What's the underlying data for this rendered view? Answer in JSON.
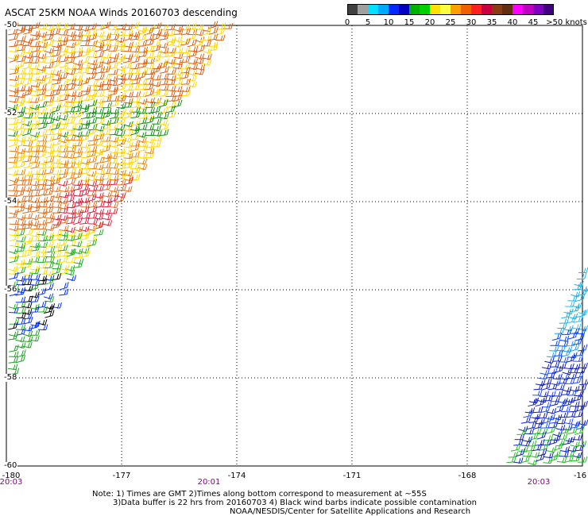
{
  "title": "ASCAT 25KM NOAA Winds 20160703 descending",
  "colorbar": {
    "colors": [
      "#404040",
      "#a0a0a0",
      "#00e0ff",
      "#00a8ff",
      "#0028ff",
      "#0000c0",
      "#00b000",
      "#00d000",
      "#ffe000",
      "#ffff40",
      "#ffa000",
      "#f06000",
      "#ff2020",
      "#c80040",
      "#8c3c14",
      "#603010",
      "#ff00ff",
      "#c000c0",
      "#8000c0",
      "#400080"
    ],
    "labels": [
      "0",
      "5",
      "10",
      "15",
      "20",
      "25",
      "30",
      "35",
      "40",
      "45",
      ">50 knots"
    ]
  },
  "map": {
    "lat_labels": [
      "-50",
      "-52",
      "-54",
      "-56",
      "-58",
      "-60"
    ],
    "lon_labels": [
      "-180",
      "-177",
      "-174",
      "-171",
      "-168",
      "-16"
    ],
    "time_labels": [
      "20:03",
      "20:01",
      "20:03"
    ],
    "lat_range": [
      -60,
      -50
    ],
    "lon_range": [
      -180,
      -165
    ],
    "grid": "dotted"
  },
  "notes": {
    "line1": "Note: 1) Times are GMT 2)Times along bottom correspond to measurement at ~55S",
    "line2": "3)Data buffer is 22 hrs from 20160703 4) Black wind barbs indicate possible contamination",
    "line3": "NOAA/NESDIS/Center for Satellite Applications and Research"
  }
}
